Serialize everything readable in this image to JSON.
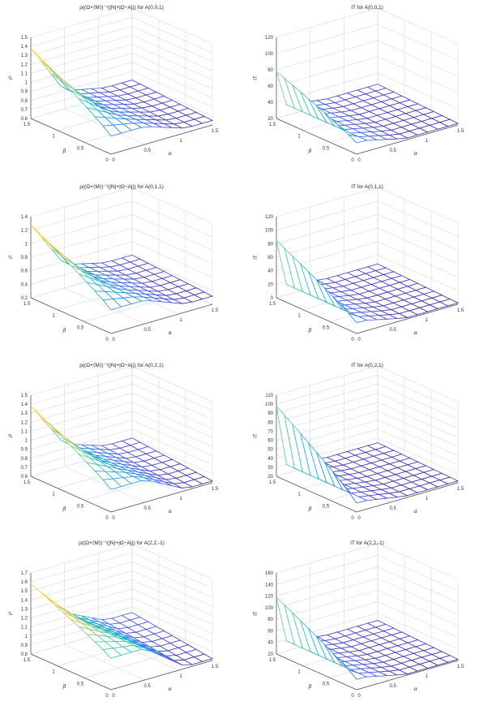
{
  "chart_data": [
    {
      "type": "surface",
      "title": "ρ((Ω+⟨M⟩)⁻¹(|N|+|Ω−A|)) for A(0,0,1)",
      "zlabel": "ρ",
      "xlabel": "α",
      "ylabel": "β",
      "x_ticks": [
        "0",
        "0.5",
        "1",
        "1.5"
      ],
      "y_ticks": [
        "0",
        "0.5",
        "1",
        "1.5"
      ],
      "z_ticks": [
        "0.6",
        "0.7",
        "0.8",
        "0.9",
        "1",
        "1.1",
        "1.2",
        "1.3",
        "1.4",
        "1.5"
      ],
      "zlim": [
        0.6,
        1.5
      ],
      "grid_n": 10,
      "z_min": 0.65,
      "z_max": 1.38,
      "ridge": 0.5,
      "flat": 0.8,
      "steep": 1.6
    },
    {
      "type": "surface",
      "title": "IT for A(0,0,1)",
      "zlabel": "IT",
      "xlabel": "α",
      "ylabel": "β",
      "x_ticks": [
        "0",
        "0.5",
        "1",
        "1.5"
      ],
      "y_ticks": [
        "0",
        "0.5",
        "1",
        "1.5"
      ],
      "z_ticks": [
        "20",
        "40",
        "60",
        "80",
        "100",
        "120"
      ],
      "zlim": [
        20,
        120
      ],
      "grid_n": 10,
      "z_min": 22,
      "z_max": 78,
      "ridge": 0.12,
      "flat": 34,
      "steep": 6
    },
    {
      "type": "surface",
      "title": "ρ((Ω+⟨M⟩)⁻¹(|N|+|Ω−A|)) for A(0,1,1)",
      "zlabel": "ρ",
      "xlabel": "α",
      "ylabel": "β",
      "x_ticks": [
        "0",
        "0.5",
        "1",
        "1.5"
      ],
      "y_ticks": [
        "0",
        "0.5",
        "1",
        "1.5"
      ],
      "z_ticks": [
        "0.2",
        "0.4",
        "0.6",
        "0.8",
        "1",
        "1.2",
        "1.4"
      ],
      "zlim": [
        0.2,
        1.4
      ],
      "grid_n": 10,
      "z_min": 0.32,
      "z_max": 1.28,
      "ridge": 0.5,
      "flat": 0.55,
      "steep": 1.4
    },
    {
      "type": "surface",
      "title": "IT for A(0,1,1)",
      "zlabel": "IT",
      "xlabel": "α",
      "ylabel": "β",
      "x_ticks": [
        "0",
        "0.5",
        "1",
        "1.5"
      ],
      "y_ticks": [
        "0",
        "0.5",
        "1",
        "1.5"
      ],
      "z_ticks": [
        "0",
        "20",
        "40",
        "60",
        "80",
        "100",
        "120"
      ],
      "zlim": [
        0,
        120
      ],
      "grid_n": 10,
      "z_min": 2,
      "z_max": 85,
      "ridge": 0.12,
      "flat": 16,
      "steep": 6
    },
    {
      "type": "surface",
      "title": "ρ((Ω+⟨M⟩)⁻¹(|N|+|Ω−A|)) for A(0,2,1)",
      "zlabel": "ρ",
      "xlabel": "α",
      "ylabel": "β",
      "x_ticks": [
        "0",
        "0.5",
        "1",
        "1.5"
      ],
      "y_ticks": [
        "0",
        "0.5",
        "1",
        "1.5"
      ],
      "z_ticks": [
        "0.6",
        "0.7",
        "0.8",
        "0.9",
        "1",
        "1.1",
        "1.2",
        "1.3",
        "1.4",
        "1.5"
      ],
      "zlim": [
        0.6,
        1.5
      ],
      "grid_n": 10,
      "z_min": 0.62,
      "z_max": 1.38,
      "ridge": 0.5,
      "flat": 0.85,
      "steep": 1.6
    },
    {
      "type": "surface",
      "title": "IT for A(0,2,1)",
      "zlabel": "IT",
      "xlabel": "α",
      "ylabel": "β",
      "x_ticks": [
        "0",
        "0.5",
        "1",
        "1.5"
      ],
      "y_ticks": [
        "0",
        "0.5",
        "1",
        "1.5"
      ],
      "z_ticks": [
        "20",
        "30",
        "40",
        "50",
        "60",
        "70",
        "80",
        "90",
        "100",
        "110"
      ],
      "zlim": [
        20,
        110
      ],
      "grid_n": 10,
      "z_min": 22,
      "z_max": 98,
      "ridge": 0.12,
      "flat": 30,
      "steep": 6
    },
    {
      "type": "surface",
      "title": "ρ((Ω+⟨M⟩)⁻¹(|N|+|Ω−A|)) for A(2,2,-1)",
      "zlabel": "ρ",
      "xlabel": "α",
      "ylabel": "β",
      "x_ticks": [
        "0",
        "0.5",
        "1",
        "1.5"
      ],
      "y_ticks": [
        "0",
        "0.5",
        "1",
        "1.5"
      ],
      "z_ticks": [
        "0.8",
        "0.9",
        "1",
        "1.1",
        "1.2",
        "1.3",
        "1.4",
        "1.5",
        "1.6",
        "1.7"
      ],
      "zlim": [
        0.8,
        1.7
      ],
      "grid_n": 10,
      "z_min": 0.82,
      "z_max": 1.58,
      "ridge": 0.5,
      "flat": 1.15,
      "steep": 1.6
    },
    {
      "type": "surface",
      "title": "IT for A(2,2,-1)",
      "zlabel": "IT",
      "xlabel": "α",
      "ylabel": "β",
      "x_ticks": [
        "0",
        "0.5",
        "1",
        "1.5"
      ],
      "y_ticks": [
        "0",
        "0.5",
        "1",
        "1.5"
      ],
      "z_ticks": [
        "20",
        "40",
        "60",
        "80",
        "100",
        "120",
        "140",
        "160"
      ],
      "zlim": [
        20,
        160
      ],
      "grid_n": 10,
      "z_min": 22,
      "z_max": 118,
      "ridge": 0.12,
      "flat": 38,
      "steep": 6
    }
  ]
}
